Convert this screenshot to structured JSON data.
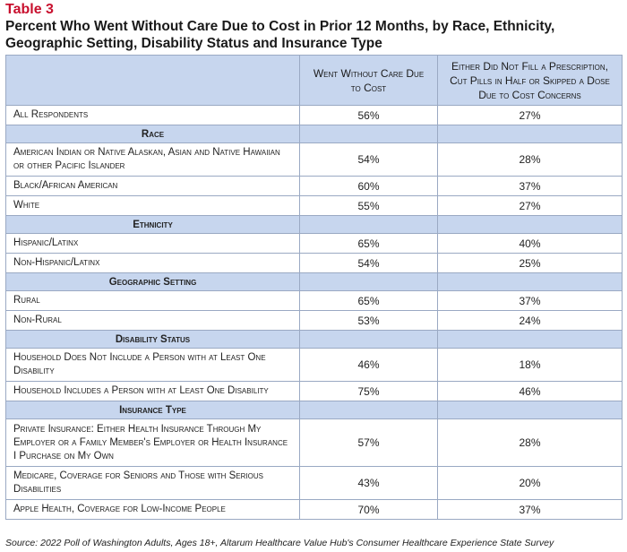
{
  "table_label": "Table 3",
  "title": "Percent Who Went Without Care Due to Cost in Prior 12 Months, by Race, Ethnicity, Geographic Setting, Disability Status and Insurance Type",
  "columns": {
    "col1": "",
    "col2": "Went Without Care Due to Cost",
    "col3": "Either Did Not Fill a Prescription, Cut Pills in Half or Skipped a Dose Due to Cost Concerns"
  },
  "rows": {
    "all": {
      "label": "All Respondents",
      "went": "56%",
      "rx": "27%"
    },
    "race_header": "Race",
    "race_1": {
      "label": "American Indian or Native Alaskan, Asian and Native Hawaiian or other Pacific Islander",
      "went": "54%",
      "rx": "28%"
    },
    "race_2": {
      "label": "Black/African American",
      "went": "60%",
      "rx": "37%"
    },
    "race_3": {
      "label": "White",
      "went": "55%",
      "rx": "27%"
    },
    "eth_header": "Ethnicity",
    "eth_1": {
      "label": "Hispanic/Latinx",
      "went": "65%",
      "rx": "40%"
    },
    "eth_2": {
      "label": "Non-Hispanic/Latinx",
      "went": "54%",
      "rx": "25%"
    },
    "geo_header": "Geographic Setting",
    "geo_1": {
      "label": "Rural",
      "went": "65%",
      "rx": "37%"
    },
    "geo_2": {
      "label": "Non-Rural",
      "went": "53%",
      "rx": "24%"
    },
    "dis_header": "Disability Status",
    "dis_1": {
      "label": "Household Does Not Include a Person with at Least One Disability",
      "went": "46%",
      "rx": "18%"
    },
    "dis_2": {
      "label": "Household Includes a Person with at Least One Disability",
      "went": "75%",
      "rx": "46%"
    },
    "ins_header": "Insurance Type",
    "ins_1": {
      "label": "Private Insurance: Either Health Insurance Through My Employer or a Family Member's Employer or Health Insurance I Purchase on My Own",
      "went": "57%",
      "rx": "28%"
    },
    "ins_2": {
      "label": "Medicare, Coverage for Seniors and Those with Serious Disabilities",
      "went": "43%",
      "rx": "20%"
    },
    "ins_3": {
      "label": "Apple Health, Coverage for Low-Income People",
      "went": "70%",
      "rx": "37%"
    }
  },
  "source": "Source: 2022 Poll of Washington Adults, Ages 18+, Altarum Healthcare Value Hub's Consumer Healthcare Experience State Survey",
  "colors": {
    "accent_red": "#c8102e",
    "header_blue": "#c7d6ee",
    "border": "#9aa9c3"
  }
}
